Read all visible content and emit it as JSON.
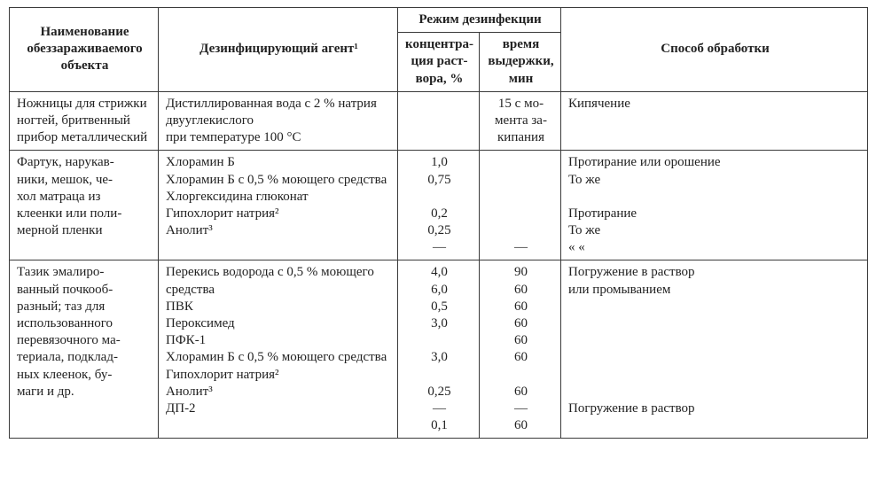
{
  "header": {
    "object": "Наименование обеззараживаемого объекта",
    "agent": "Дезинфицирующий агент¹",
    "regime": "Режим дезинфекции",
    "conc": "концентра-\nция раст-\nвора, %",
    "time": "время\nвыдержки,\nмин",
    "method": "Способ обработки"
  },
  "rows": [
    {
      "object": "Ножницы для стрижки ногтей, бритвенный прибор металлический",
      "agent": "Дистиллированная вода с 2 % натрия двууглекислого\nпри температуре 100 °C",
      "conc": "",
      "time": "15 с мо-\nмента за-\nкипания",
      "method": "Кипячение"
    },
    {
      "object": "Фартук, нарукав-\nники, мешок, че-\nхол матраца из\nклеенки или поли-\nмерной пленки",
      "agent": "Хлорамин Б\nХлорамин Б с 0,5 % моющего средства\nХлоргексидина глюконат\nГипохлорит натрия²\nАнолит³",
      "conc": "1,0\n0,75\n\n0,2\n0,25\n—",
      "time": "\n\n\n\n\n—",
      "method": "Протирание или орошение\nТо же\n\nПротирание\nТо же\n«    «"
    },
    {
      "object": "Тазик эмалиро-\nванный почкооб-\nразный; таз для\nиспользованного\nперевязочного ма-\nтериала, подклад-\nных клеенок, бу-\nмаги и др.",
      "agent": "Перекись водорода с 0,5 % моющего средства\nПВК\nПероксимед\nПФК-1\nХлорамин Б с 0,5 % моющего средства\nГипохлорит натрия²\nАнолит³\nДП-2",
      "conc": "4,0\n6,0\n0,5\n3,0\n\n3,0\n\n0,25\n—\n0,1",
      "time": "90\n60\n60\n60\n60\n60\n\n60\n—\n60",
      "method": "Погружение в раствор\nили промыванием\n\n\n\n\n\n\nПогружение в раствор"
    }
  ]
}
